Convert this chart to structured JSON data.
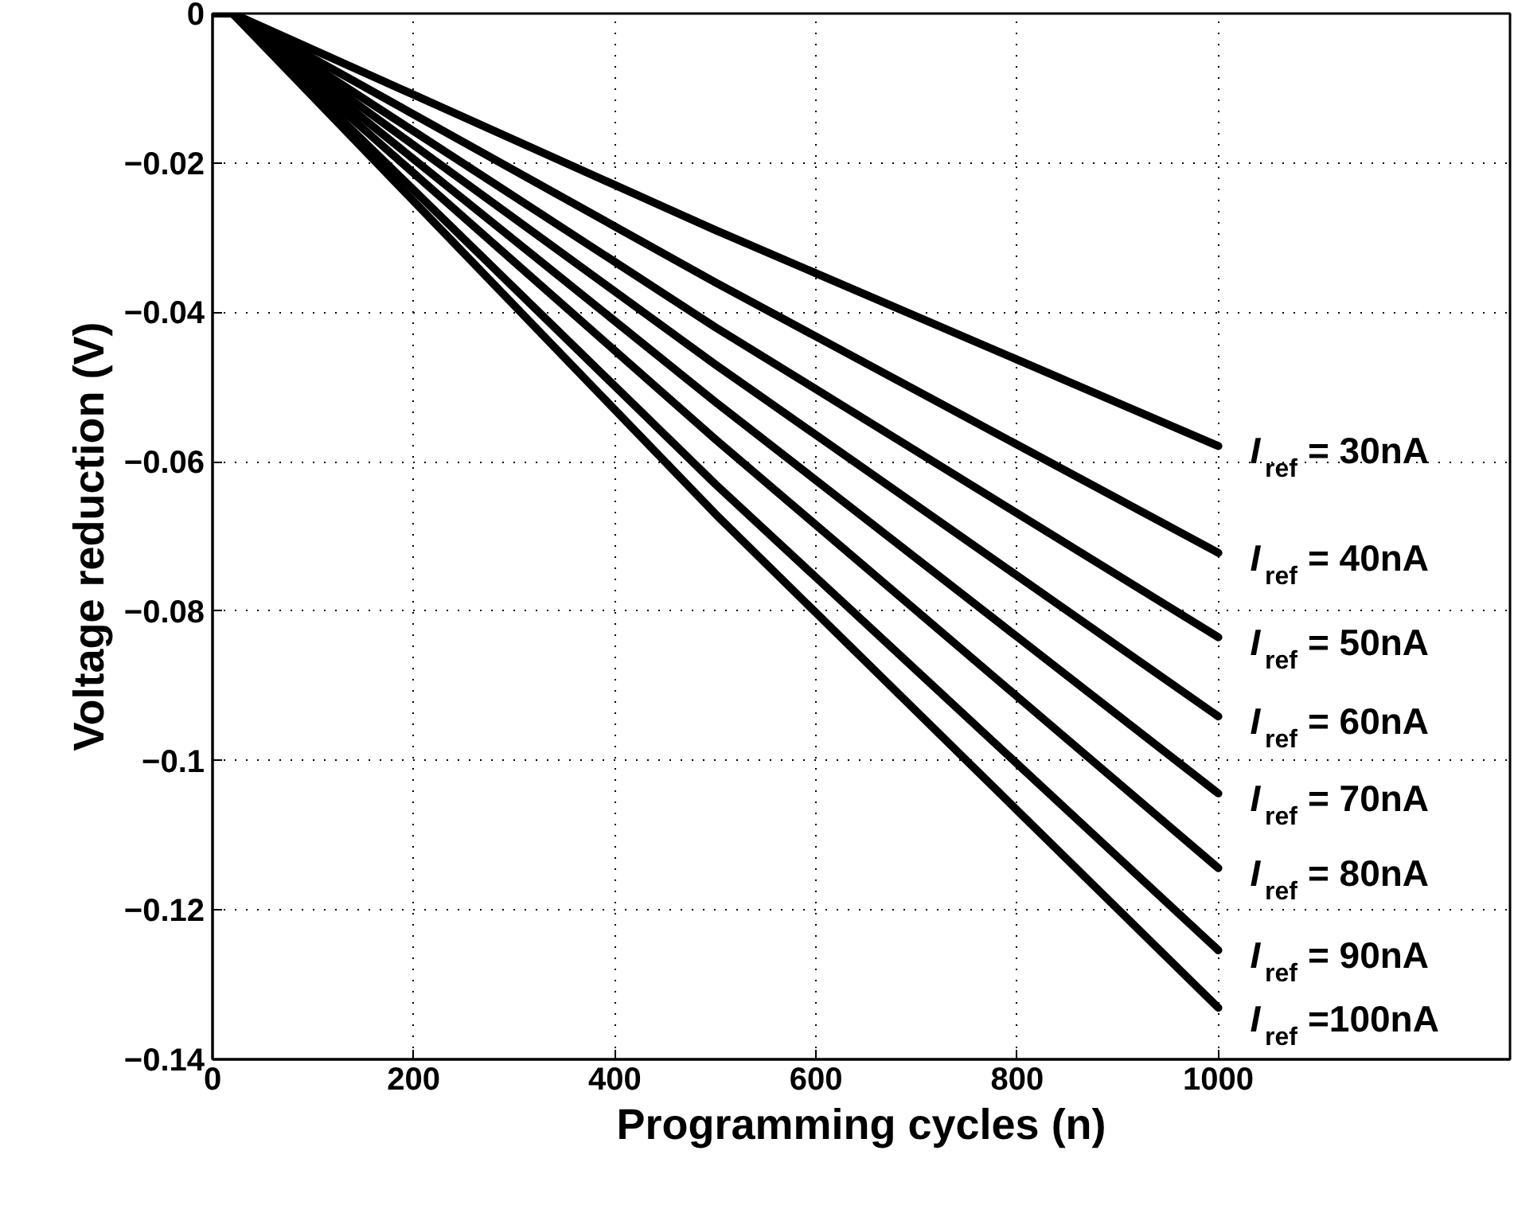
{
  "chart_data": {
    "type": "line",
    "xlabel": "Programming cycles (n)",
    "ylabel": "Voltage reduction (V)",
    "xlim": [
      0,
      1290
    ],
    "xticks": [
      0,
      200,
      400,
      600,
      800,
      1000
    ],
    "ylim": [
      -0.14,
      0
    ],
    "yticks": [
      -0.14,
      -0.12,
      -0.1,
      -0.08,
      -0.06,
      -0.04,
      -0.02,
      0
    ],
    "grid": true,
    "line_style": "solid",
    "marker": "none",
    "series": [
      {
        "name": "I$_{ref}$= 30nA",
        "color": "#000000",
        "x": [
          0,
          20,
          500,
          1000
        ],
        "values": [
          0,
          0,
          -0.029,
          -0.0579
        ]
      },
      {
        "name": "I$_{ref}$= 40nA",
        "color": "#000000",
        "x": [
          0,
          20,
          500,
          1000
        ],
        "values": [
          0,
          0,
          -0.036,
          -0.0722
        ]
      },
      {
        "name": "I$_{ref}$= 50nA",
        "color": "#000000",
        "x": [
          0,
          20,
          500,
          1000
        ],
        "values": [
          0,
          0,
          -0.042,
          -0.0835
        ]
      },
      {
        "name": "I$_{ref}$= 60nA",
        "color": "#000000",
        "x": [
          0,
          20,
          500,
          1000
        ],
        "values": [
          0,
          0,
          -0.047,
          -0.0941
        ]
      },
      {
        "name": "I$_{ref}$= 70nA",
        "color": "#000000",
        "x": [
          0,
          20,
          500,
          1000
        ],
        "values": [
          0,
          0,
          -0.052,
          -0.1044
        ]
      },
      {
        "name": "I$_{ref}$= 80nA",
        "color": "#000000",
        "x": [
          0,
          20,
          500,
          1000
        ],
        "values": [
          0,
          0,
          -0.057,
          -0.1144
        ]
      },
      {
        "name": "I$_{ref}$= 90nA",
        "color": "#000000",
        "x": [
          0,
          20,
          500,
          1000
        ],
        "values": [
          0,
          0,
          -0.063,
          -0.1254
        ]
      },
      {
        "name": "I$_{ref}$=100nA",
        "color": "#000000",
        "x": [
          0,
          20,
          500,
          1000
        ],
        "values": [
          0,
          0,
          -0.067,
          -0.1331
        ]
      }
    ]
  }
}
